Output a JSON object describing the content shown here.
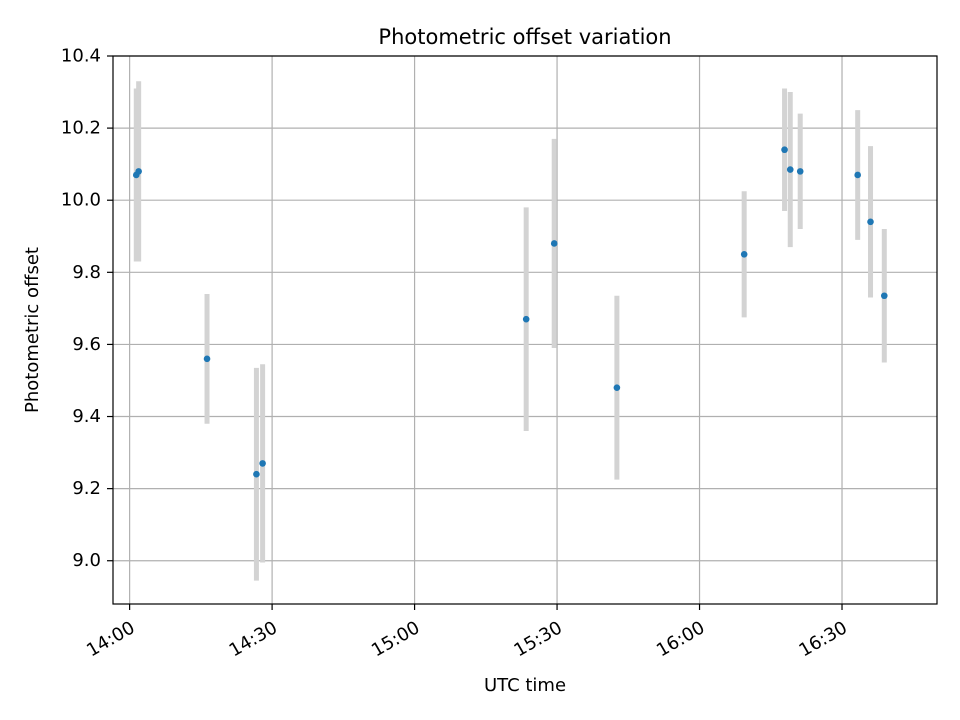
{
  "chart_data": {
    "type": "scatter",
    "title": "Photometric offset variation",
    "xlabel": "UTC time",
    "ylabel": "Photometric offset",
    "xlim_minutes": [
      836.5,
      1010
    ],
    "ylim": [
      8.88,
      10.4
    ],
    "grid": true,
    "x_ticks": [
      {
        "minutes": 840,
        "label": "14:00"
      },
      {
        "minutes": 870,
        "label": "14:30"
      },
      {
        "minutes": 900,
        "label": "15:00"
      },
      {
        "minutes": 930,
        "label": "15:30"
      },
      {
        "minutes": 960,
        "label": "16:00"
      },
      {
        "minutes": 990,
        "label": "16:30"
      }
    ],
    "y_ticks": [
      {
        "value": 9.0,
        "label": "9.0"
      },
      {
        "value": 9.2,
        "label": "9.2"
      },
      {
        "value": 9.4,
        "label": "9.4"
      },
      {
        "value": 9.6,
        "label": "9.6"
      },
      {
        "value": 9.8,
        "label": "9.8"
      },
      {
        "value": 10.0,
        "label": "10.0"
      },
      {
        "value": 10.2,
        "label": "10.2"
      },
      {
        "value": 10.4,
        "label": "10.4"
      }
    ],
    "point_color": "#1f77b4",
    "errorbar_color": "#d3d3d3",
    "points": [
      {
        "time": "14:01.4",
        "minutes": 841.4,
        "y": 10.07,
        "err": 0.24
      },
      {
        "time": "14:01.9",
        "minutes": 841.9,
        "y": 10.08,
        "err": 0.25
      },
      {
        "time": "14:16.3",
        "minutes": 856.3,
        "y": 9.56,
        "err": 0.18
      },
      {
        "time": "14:26.7",
        "minutes": 866.7,
        "y": 9.24,
        "err": 0.295
      },
      {
        "time": "14:28.0",
        "minutes": 868.0,
        "y": 9.27,
        "err": 0.275
      },
      {
        "time": "15:23.5",
        "minutes": 923.5,
        "y": 9.67,
        "err": 0.31
      },
      {
        "time": "15:29.4",
        "minutes": 929.4,
        "y": 9.88,
        "err": 0.29
      },
      {
        "time": "15:42.6",
        "minutes": 942.6,
        "y": 9.48,
        "err": 0.255
      },
      {
        "time": "16:09.4",
        "minutes": 969.4,
        "y": 9.85,
        "err": 0.175
      },
      {
        "time": "16:17.9",
        "minutes": 977.9,
        "y": 10.14,
        "err": 0.17
      },
      {
        "time": "16:19.1",
        "minutes": 979.1,
        "y": 10.085,
        "err": 0.215
      },
      {
        "time": "16:21.2",
        "minutes": 981.2,
        "y": 10.08,
        "err": 0.16
      },
      {
        "time": "16:33.3",
        "minutes": 993.3,
        "y": 10.07,
        "err": 0.18
      },
      {
        "time": "16:36.0",
        "minutes": 996.0,
        "y": 9.94,
        "err": 0.21
      },
      {
        "time": "16:38.9",
        "minutes": 998.9,
        "y": 9.735,
        "err": 0.185
      }
    ]
  }
}
